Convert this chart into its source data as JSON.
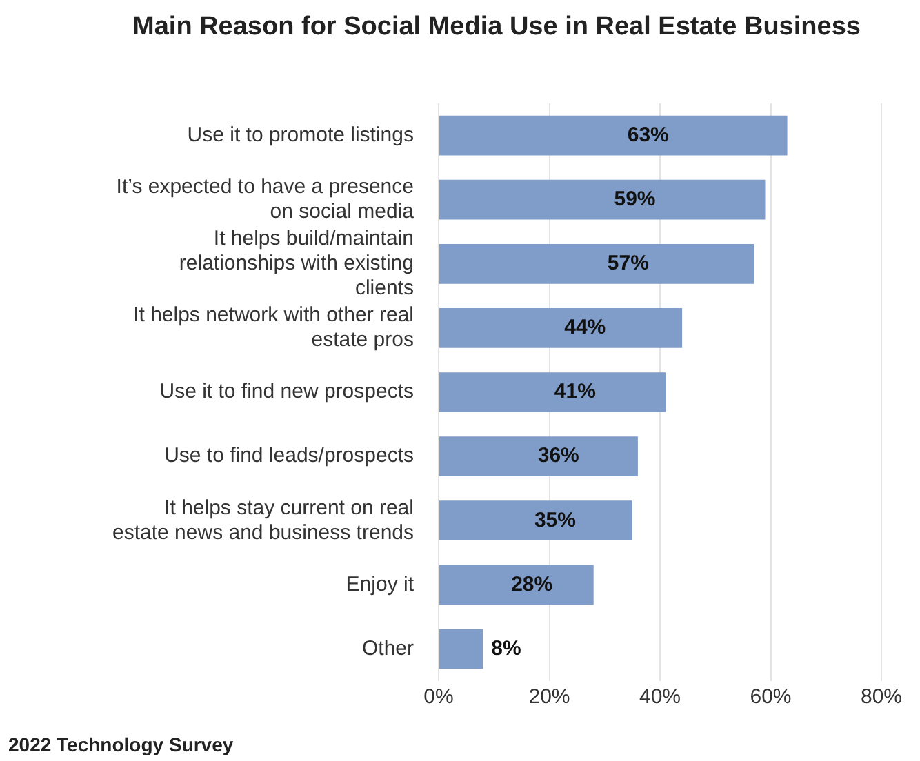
{
  "chart_data": {
    "type": "bar",
    "orientation": "horizontal",
    "title": "Main Reason for Social Media Use in Real Estate Business",
    "categories": [
      "Use it to promote listings",
      "It’s expected to have a presence on social media",
      "It helps build/maintain relationships with existing clients",
      "It helps network with other real estate pros",
      "Use it to find new prospects",
      "Use to find leads/prospects",
      "It helps stay current on real estate news and business trends",
      "Enjoy it",
      "Other"
    ],
    "values": [
      63,
      59,
      57,
      44,
      41,
      36,
      35,
      28,
      8
    ],
    "value_labels": [
      "63%",
      "59%",
      "57%",
      "44%",
      "41%",
      "36%",
      "35%",
      "28%",
      "8%"
    ],
    "color": "#7f9dc8",
    "xlim": [
      0,
      80
    ],
    "xticks": [
      {
        "value": 0,
        "label": "0%"
      },
      {
        "value": 20,
        "label": "20%"
      },
      {
        "value": 40,
        "label": "40%"
      },
      {
        "value": 60,
        "label": "60%"
      },
      {
        "value": 80,
        "label": "80%"
      }
    ],
    "grid": "x",
    "annotations": [
      "2022 Technology Survey"
    ]
  }
}
